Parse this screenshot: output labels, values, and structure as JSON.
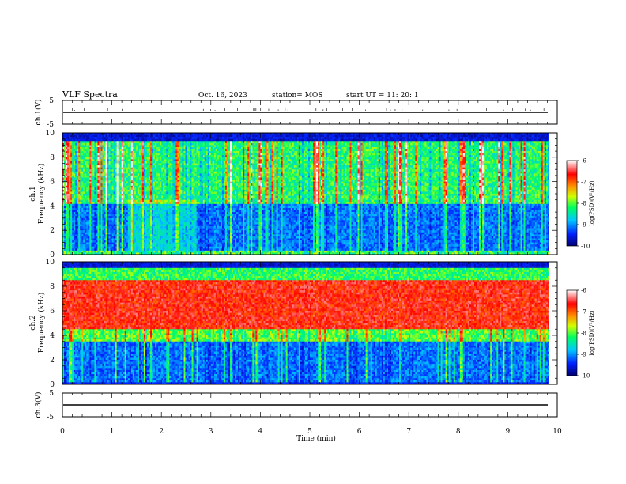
{
  "header": {
    "title": "VLF Spectra",
    "date": "Oct. 16, 2023",
    "station": "station= MOS",
    "start": "start  UT =   11: 20: 1"
  },
  "chart_data": [
    {
      "type": "line",
      "ylabel": "ch.1(V)",
      "ylim": [
        -5,
        5
      ],
      "y_ticks": [
        "5",
        "-5"
      ],
      "series": [
        {
          "values": [
            0,
            0
          ]
        }
      ]
    },
    {
      "type": "heatmap",
      "ylabel_top": "ch.1",
      "ylabel": "Frequency (kHz)",
      "ylim": [
        0,
        10
      ],
      "y_ticks": [
        "0",
        "2",
        "4",
        "6",
        "8",
        "10"
      ],
      "colorbar": {
        "label": "log(PSD)(V²/Hz)",
        "range": [
          -10,
          -6
        ],
        "ticks": [
          "-6",
          "-7",
          "-8",
          "-9",
          "-10"
        ],
        "colors": [
          "#000070",
          "#0020ff",
          "#00c8ff",
          "#00ff60",
          "#d0ff00",
          "#ff9000",
          "#ff0000",
          "#ffffff"
        ]
      }
    },
    {
      "type": "heatmap",
      "ylabel_top": "ch.2",
      "ylabel": "Frequency (kHz)",
      "ylim": [
        0,
        10
      ],
      "y_ticks": [
        "0",
        "2",
        "4",
        "6",
        "8",
        "10"
      ],
      "colorbar": {
        "label": "log(PSD)(V²/Hz)",
        "range": [
          -10,
          -6
        ],
        "ticks": [
          "-6",
          "-7",
          "-8",
          "-9",
          "-10"
        ],
        "colors": [
          "#000070",
          "#0020ff",
          "#00c8ff",
          "#00ff60",
          "#d0ff00",
          "#ff9000",
          "#ff0000",
          "#ffffff"
        ]
      }
    },
    {
      "type": "line",
      "ylabel": "ch.3(V)",
      "ylim": [
        -5,
        5
      ],
      "y_ticks": [
        "5",
        "-5"
      ],
      "xlabel": "Time (min)",
      "xlim": [
        0,
        10
      ],
      "x_ticks": [
        "0",
        "1",
        "2",
        "3",
        "4",
        "5",
        "6",
        "7",
        "8",
        "9",
        "10"
      ],
      "series": [
        {
          "values": [
            0,
            0
          ]
        }
      ]
    }
  ]
}
